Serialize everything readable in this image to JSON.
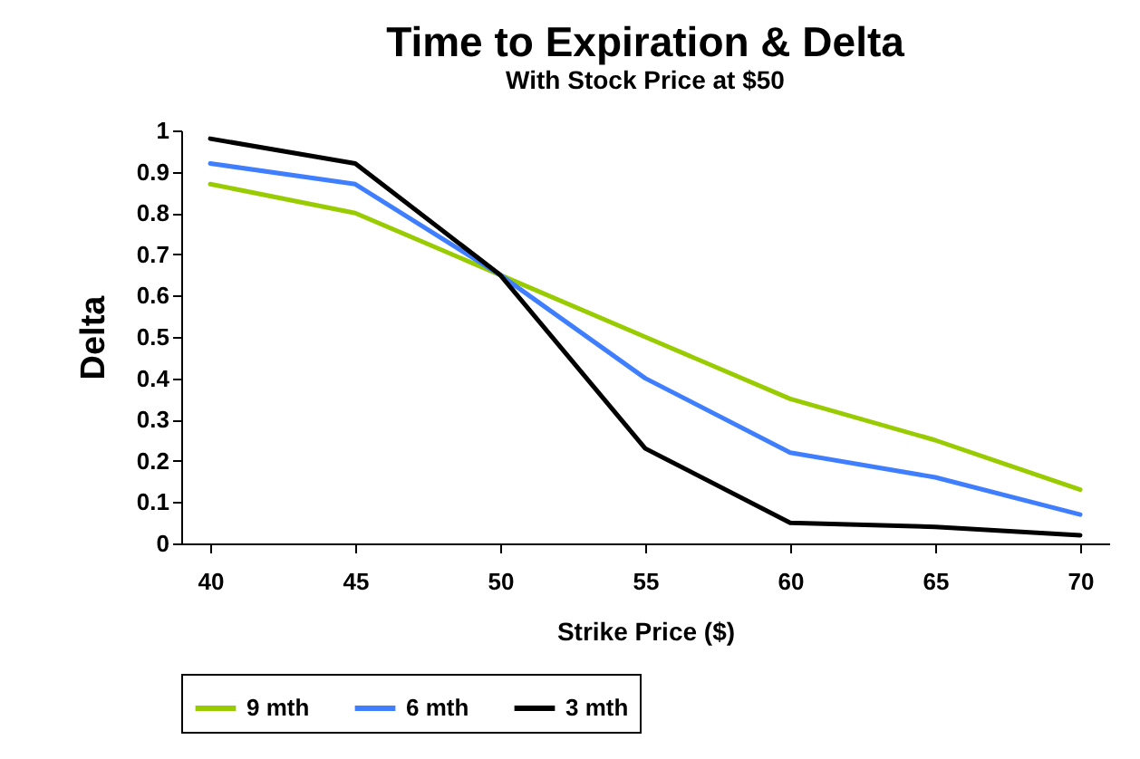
{
  "chart_data": {
    "type": "line",
    "title": "Time to Expiration & Delta",
    "subtitle": "With Stock Price at $50",
    "xlabel": "Strike Price ($)",
    "ylabel": "Delta",
    "categories": [
      "40",
      "45",
      "50",
      "55",
      "60",
      "65",
      "70"
    ],
    "series": [
      {
        "name": "9 mth",
        "color": "#99cc00",
        "values": [
          0.87,
          0.8,
          0.65,
          0.5,
          0.35,
          0.25,
          0.13
        ]
      },
      {
        "name": "6 mth",
        "color": "#3f7fff",
        "values": [
          0.92,
          0.87,
          0.65,
          0.4,
          0.22,
          0.16,
          0.07
        ]
      },
      {
        "name": "3 mth",
        "color": "#000000",
        "values": [
          0.98,
          0.92,
          0.65,
          0.23,
          0.05,
          0.04,
          0.02
        ]
      }
    ],
    "ylim": [
      0,
      1
    ],
    "yticks": [
      0,
      0.1,
      0.2,
      0.3,
      0.4,
      0.5,
      0.6,
      0.7,
      0.8,
      0.9,
      1
    ],
    "grid": false,
    "legend": "bottom",
    "marker": "none",
    "line_style": "solid"
  }
}
